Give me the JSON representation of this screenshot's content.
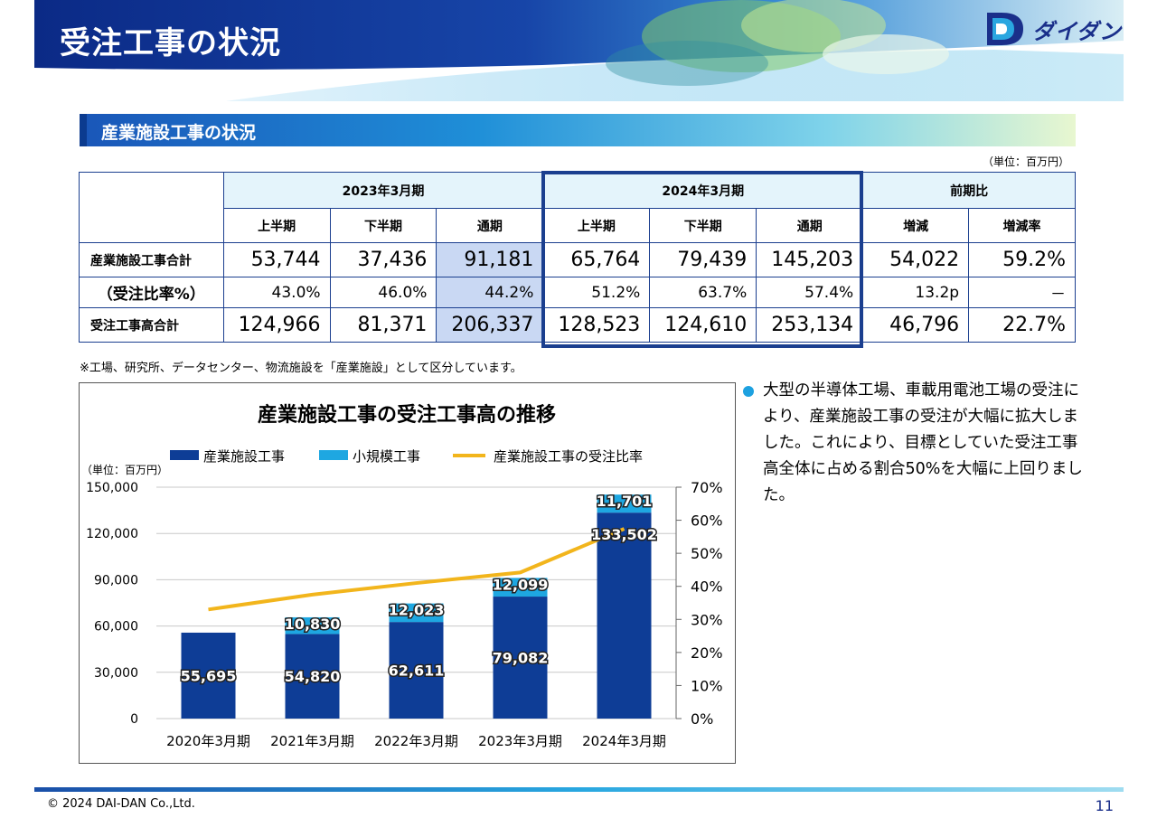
{
  "header": {
    "title": "受注工事の状況",
    "logo_text": "ダイダン"
  },
  "section": {
    "title": "産業施設工事の状況"
  },
  "table": {
    "unit": "（単位：百万円）",
    "groups": [
      "2023年3月期",
      "2024年3月期",
      "前期比"
    ],
    "subheaders": [
      "上半期",
      "下半期",
      "通期",
      "上半期",
      "下半期",
      "通期",
      "増減",
      "増減率"
    ],
    "rows": [
      {
        "label": "産業施設工事合計",
        "cells": [
          "53,744",
          "37,436",
          "91,181",
          "65,764",
          "79,439",
          "145,203",
          "54,022",
          "59.2%"
        ]
      },
      {
        "label": "（受注比率%）",
        "cells": [
          "43.0%",
          "46.0%",
          "44.2%",
          "51.2%",
          "63.7%",
          "57.4%",
          "13.2p",
          "－"
        ]
      },
      {
        "label": "受注工事高合計",
        "cells": [
          "124,966",
          "81,371",
          "206,337",
          "128,523",
          "124,610",
          "253,134",
          "46,796",
          "22.7%"
        ]
      }
    ]
  },
  "footnote": "※工場、研究所、データセンター、物流施設を「産業施設」として区分しています。",
  "chart_data": {
    "type": "bar",
    "title": "産業施設工事の受注工事高の推移",
    "unit_label": "（単位：百万円）",
    "categories": [
      "2020年3月期",
      "2021年3月期",
      "2022年3月期",
      "2023年3月期",
      "2024年3月期"
    ],
    "series": [
      {
        "name": "産業施設工事",
        "type": "bar",
        "stack": true,
        "values": [
          55695,
          54820,
          62611,
          79082,
          133502
        ],
        "labels": [
          "55,695",
          "54,820",
          "62,611",
          "79,082",
          "133,502"
        ],
        "color": "#0e3d96"
      },
      {
        "name": "小規模工事",
        "type": "bar",
        "stack": true,
        "values": [
          null,
          10830,
          12023,
          12099,
          11701
        ],
        "labels": [
          "",
          "10,830",
          "12,023",
          "12,099",
          "11,701"
        ],
        "color": "#1ea7e1"
      },
      {
        "name": "産業施設工事の受注比率",
        "type": "line",
        "axis": "right",
        "values": [
          33,
          37.5,
          41,
          44.2,
          57.4
        ],
        "color": "#f2b51c"
      }
    ],
    "yticks": [
      "0",
      "30,000",
      "60,000",
      "90,000",
      "120,000",
      "150,000"
    ],
    "ylim": [
      0,
      150000
    ],
    "y2ticks": [
      "0%",
      "10%",
      "20%",
      "30%",
      "40%",
      "50%",
      "60%",
      "70%"
    ],
    "y2lim": [
      0,
      70
    ],
    "legend": "top",
    "grid": true
  },
  "bullet": {
    "text": "大型の半導体工場、車載用電池工場の受注により、産業施設工事の受注が大幅に拡大しました。これにより、目標としていた受注工事高全体に占める割合50%を大幅に上回りました。"
  },
  "footer": {
    "copyright": "© 2024 DAI-DAN Co.,Ltd.",
    "page": "11"
  }
}
